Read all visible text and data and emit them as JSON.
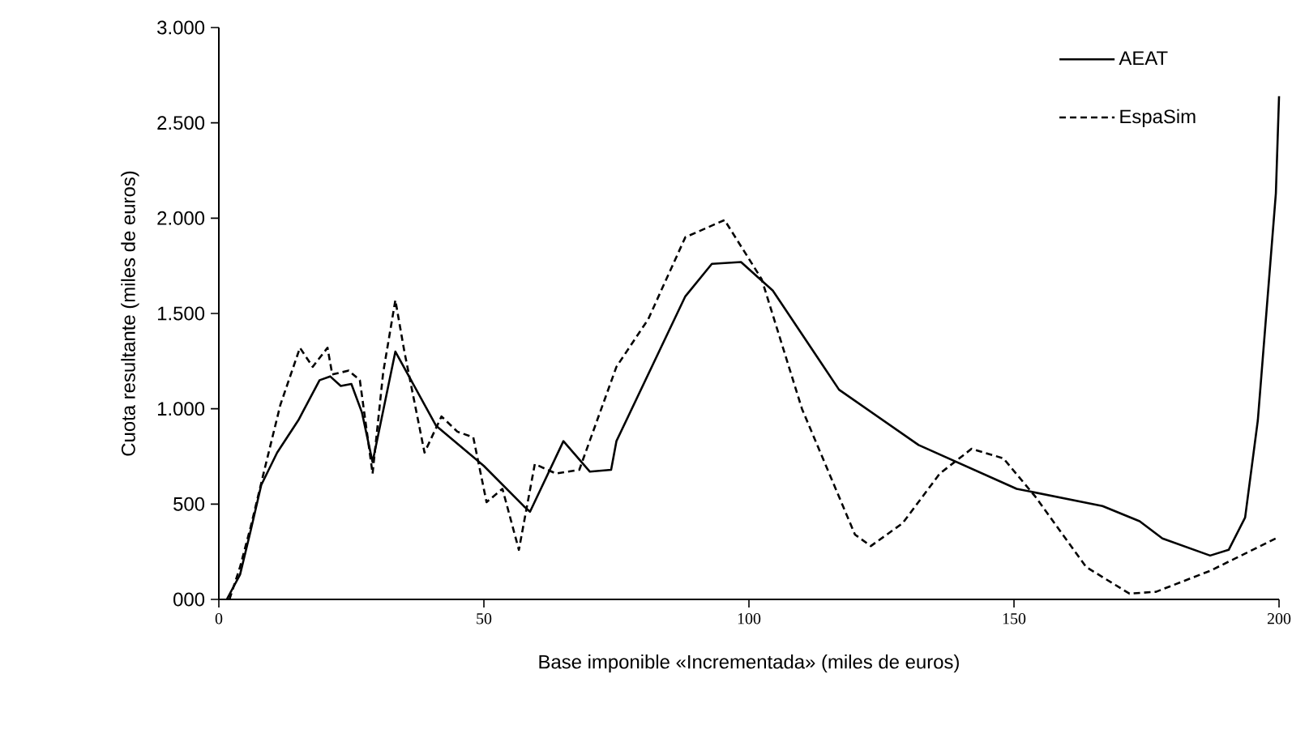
{
  "chart_data": {
    "type": "line",
    "xlabel": "Base imponible «Incrementada» (miles de euros)",
    "ylabel": "Cuota resultante (miles de euros)",
    "xlim": [
      0,
      200
    ],
    "ylim": [
      0,
      3000
    ],
    "xticks": [
      0,
      50,
      100,
      150,
      200
    ],
    "yticks": [
      {
        "value": 0,
        "label": "000"
      },
      500,
      {
        "value": 1000,
        "label": "1.000"
      },
      {
        "value": 1500,
        "label": "1.500"
      },
      {
        "value": 2000,
        "label": "2.000"
      },
      {
        "value": 2500,
        "label": "2.500"
      },
      {
        "value": 3000,
        "label": "3.000"
      }
    ],
    "legend": "top right",
    "grid": false,
    "marker": "none",
    "series": [
      {
        "name": "AEAT",
        "color": "#000000",
        "line_style": "solid",
        "x": [
          1.5,
          4,
          6,
          8,
          11,
          15,
          19,
          21,
          23,
          25,
          27,
          29,
          33.3,
          41,
          50,
          57.5,
          58.7,
          65,
          70,
          74,
          75,
          88,
          93,
          98.5,
          104.5,
          117,
          132,
          150.5,
          166.7,
          173.7,
          178,
          187,
          190.5,
          193.6,
          196,
          199.4,
          200
        ],
        "values": [
          0,
          130,
          360,
          600,
          770,
          940,
          1150,
          1170,
          1120,
          1130,
          980,
          720,
          1300,
          910,
          700,
          490,
          460,
          830,
          670,
          680,
          830,
          1590,
          1760,
          1770,
          1620,
          1100,
          810,
          580,
          490,
          410,
          320,
          230,
          260,
          430,
          940,
          2130,
          2640
        ]
      },
      {
        "name": "EspaSim",
        "color": "#000000",
        "line_style": "dashed",
        "x": [
          2,
          4,
          6,
          8.6,
          11.6,
          15.3,
          17.7,
          20.5,
          21.4,
          24.5,
          26.6,
          29,
          31,
          33.3,
          35,
          38.8,
          42,
          45,
          48,
          50.5,
          53.5,
          56.6,
          59.6,
          63.6,
          68,
          75,
          81,
          88,
          95.4,
          102.4,
          110,
          120,
          123,
          129,
          136,
          142,
          148,
          154,
          163.6,
          171.8,
          176.8,
          187,
          199.4
        ],
        "values": [
          0,
          170,
          380,
          680,
          1020,
          1320,
          1220,
          1320,
          1180,
          1200,
          1150,
          660,
          1190,
          1570,
          1300,
          770,
          960,
          880,
          850,
          510,
          580,
          260,
          710,
          660,
          680,
          1220,
          1470,
          1900,
          1990,
          1680,
          1000,
          340,
          280,
          400,
          660,
          790,
          740,
          540,
          170,
          30,
          40,
          150,
          320
        ]
      }
    ]
  }
}
